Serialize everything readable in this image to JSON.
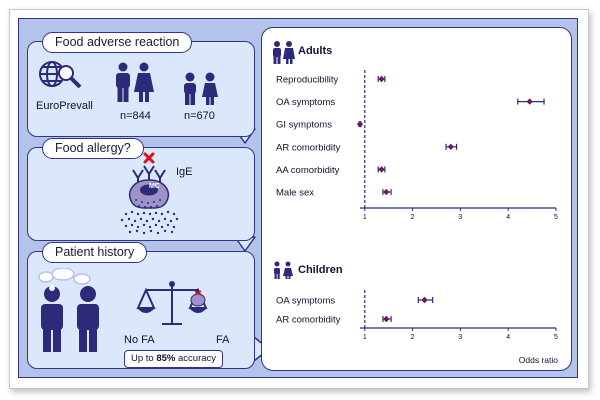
{
  "left": {
    "panel1": {
      "title": "Food adverse reaction",
      "source": "EuroPrevall",
      "n_adults": "n=844",
      "n_children": "n=670"
    },
    "panel2": {
      "title": "Food allergy?",
      "ige": "IgE",
      "cell": "MC"
    },
    "panel3": {
      "title": "Patient history",
      "no_fa": "No FA",
      "fa": "FA",
      "accuracy_prefix": "Up to ",
      "accuracy_value": "85%",
      "accuracy_suffix": " accuracy"
    }
  },
  "colors": {
    "accent": "#2d2a7a",
    "frame": "#b3c3ea",
    "panel": "#dbe8fb",
    "marker": "#6b1a5a",
    "red": "#e0101a"
  },
  "chart_data": [
    {
      "type": "scatter",
      "title": "Adults",
      "categories": [
        "Reproducibility",
        "OA symptoms",
        "GI symptoms",
        "AR comorbidity",
        "AA comorbidity",
        "Male sex"
      ],
      "values": [
        1.35,
        4.45,
        0.9,
        2.8,
        1.35,
        1.45
      ],
      "ci_low": [
        1.28,
        4.2,
        0.88,
        2.7,
        1.28,
        1.38
      ],
      "ci_high": [
        1.42,
        4.75,
        0.92,
        2.92,
        1.42,
        1.55
      ],
      "xlim": [
        0.9,
        5
      ],
      "xticks": [
        "1",
        "2",
        "3",
        "4",
        "5"
      ],
      "reference_line": 1
    },
    {
      "type": "scatter",
      "title": "Children",
      "categories": [
        "OA symptoms",
        "AR comorbidity"
      ],
      "values": [
        2.25,
        1.45
      ],
      "ci_low": [
        2.12,
        1.38
      ],
      "ci_high": [
        2.42,
        1.55
      ],
      "xlim": [
        0.9,
        5
      ],
      "xticks": [
        "1",
        "2",
        "3",
        "4",
        "5"
      ],
      "xlabel": "Odds ratio",
      "reference_line": 1
    }
  ]
}
